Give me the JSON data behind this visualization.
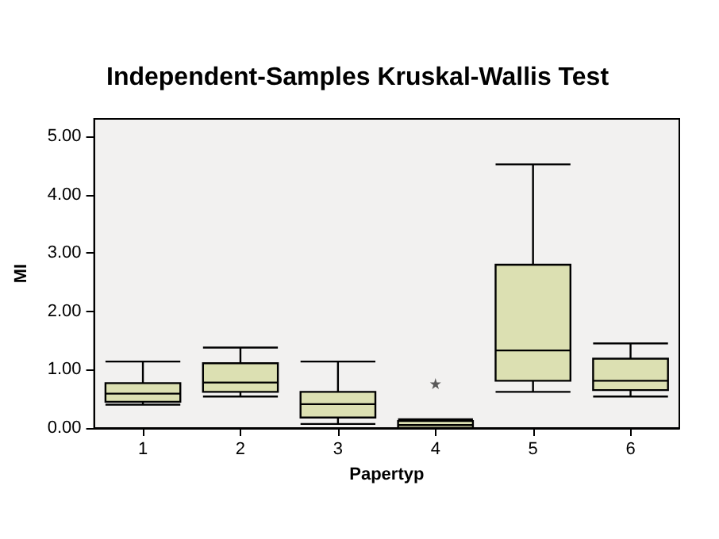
{
  "chart_data": {
    "type": "box",
    "title": "Independent-Samples Kruskal-Wallis Test",
    "xlabel": "Papertyp",
    "ylabel": "MI",
    "categories": [
      "1",
      "2",
      "3",
      "4",
      "5",
      "6"
    ],
    "boxes": [
      {
        "low": 0.4,
        "q1": 0.45,
        "median": 0.59,
        "q3": 0.77,
        "high": 1.14
      },
      {
        "low": 0.54,
        "q1": 0.62,
        "median": 0.78,
        "q3": 1.11,
        "high": 1.38
      },
      {
        "low": 0.07,
        "q1": 0.18,
        "median": 0.41,
        "q3": 0.62,
        "high": 1.14
      },
      {
        "low": 0.0,
        "q1": 0.0,
        "median": 0.05,
        "q3": 0.12,
        "high": 0.15,
        "outliers": [
          0.76
        ]
      },
      {
        "low": 0.62,
        "q1": 0.81,
        "median": 1.33,
        "q3": 2.8,
        "high": 4.52
      },
      {
        "low": 0.54,
        "q1": 0.65,
        "median": 0.81,
        "q3": 1.19,
        "high": 1.45
      }
    ],
    "color": "#dce0b2",
    "ylim": [
      0,
      5.3
    ],
    "yticks": [
      {
        "value": 0,
        "label": "0.00"
      },
      {
        "value": 1,
        "label": "1.00"
      },
      {
        "value": 2,
        "label": "2.00"
      },
      {
        "value": 3,
        "label": "3.00"
      },
      {
        "value": 4,
        "label": "4.00"
      },
      {
        "value": 5,
        "label": "5.00"
      }
    ],
    "grid": false,
    "marker": "star"
  }
}
